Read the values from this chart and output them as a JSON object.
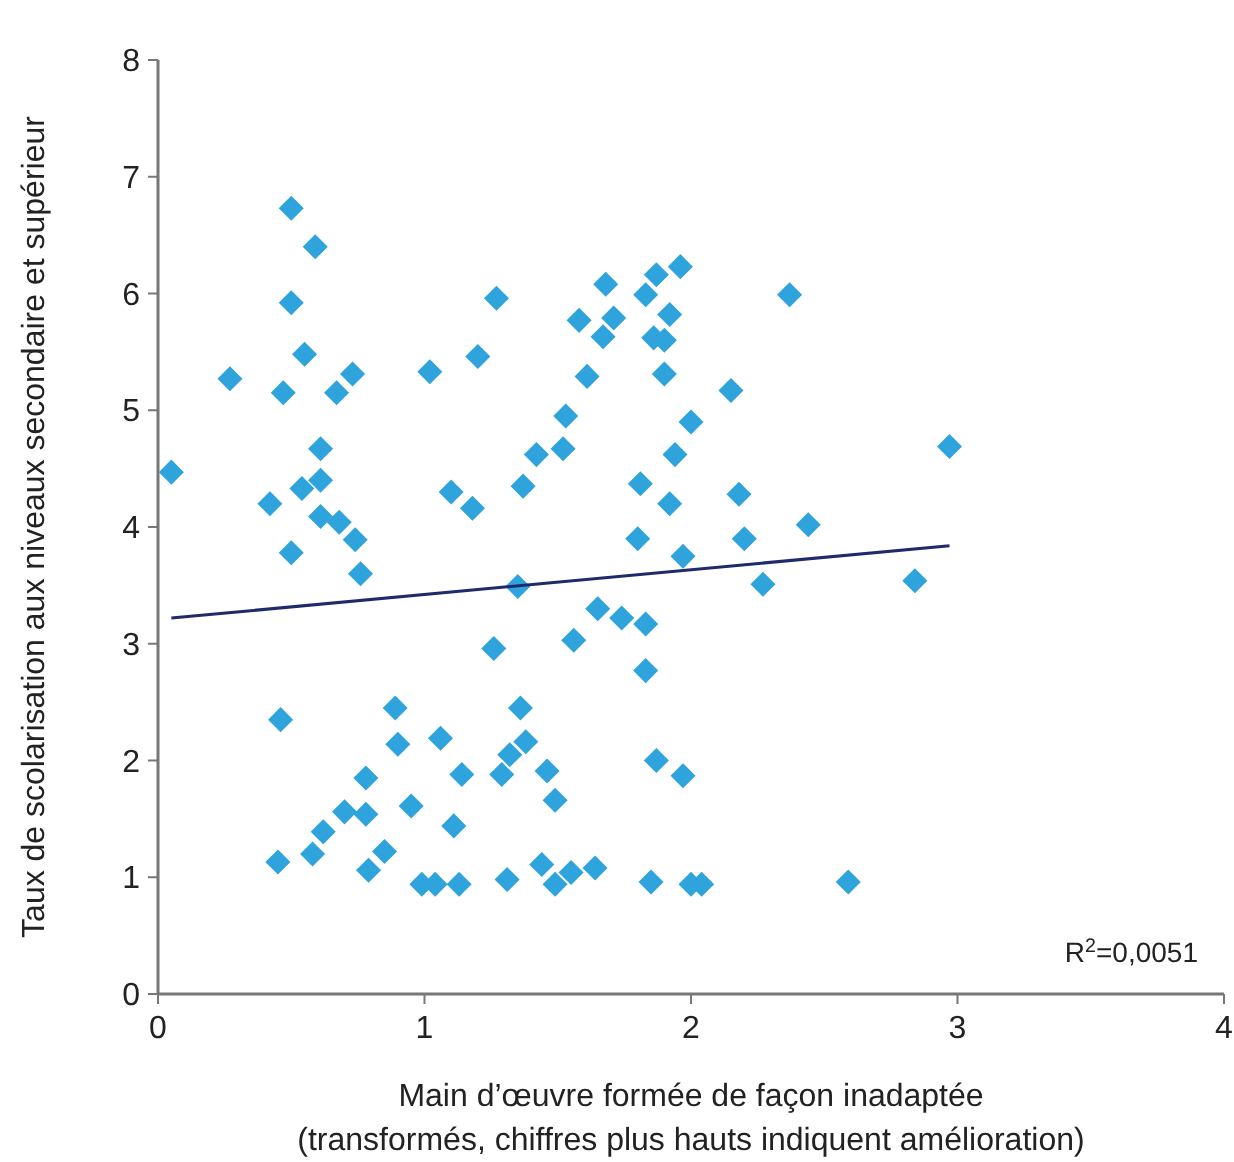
{
  "chart_data": {
    "type": "scatter",
    "xlabel": "Main d’œuvre formée de façon inadaptée\n(transformés, chiffres plus hauts indiquent amélioration)",
    "ylabel": "Taux de scolarisation aux niveaux secondaire et supérieur",
    "xlim": [
      0,
      4
    ],
    "ylim": [
      0,
      8
    ],
    "xticks": [
      0,
      1,
      2,
      3,
      4
    ],
    "yticks": [
      0,
      1,
      2,
      3,
      4,
      5,
      6,
      7,
      8
    ],
    "grid": false,
    "marker": "diamond",
    "annotations": [
      "R$^{2}$=0,0051"
    ],
    "series": [
      {
        "color": "#2ea3dc",
        "x": [
          0.05,
          0.27,
          0.5,
          0.59,
          0.5,
          0.55,
          0.47,
          0.67,
          0.73,
          1.02,
          1.2,
          1.27,
          0.42,
          0.54,
          0.61,
          0.61,
          0.61,
          0.68,
          0.74,
          0.5,
          0.76,
          1.1,
          1.18,
          1.68,
          1.87,
          1.96,
          1.83,
          1.58,
          1.71,
          1.67,
          1.92,
          1.86,
          1.9,
          1.9,
          1.61,
          2.37,
          2.15,
          1.53,
          2.0,
          1.42,
          1.52,
          1.94,
          2.97,
          1.37,
          1.81,
          2.18,
          1.92,
          1.8,
          2.2,
          2.44,
          1.97,
          1.35,
          2.27,
          2.84,
          1.65,
          1.74,
          1.83,
          1.26,
          1.56,
          1.83,
          1.36,
          1.38,
          1.32,
          1.29,
          1.46,
          1.49,
          1.87,
          1.97,
          1.31,
          1.44,
          1.49,
          1.55,
          1.64,
          1.85,
          2.0,
          2.04,
          2.59,
          0.46,
          0.89,
          0.9,
          1.06,
          1.14,
          0.78,
          0.7,
          0.78,
          0.62,
          0.95,
          1.11,
          0.45,
          0.58,
          0.85,
          0.79,
          0.99,
          1.04,
          1.13
        ],
        "values": [
          4.47,
          5.27,
          6.73,
          6.4,
          5.92,
          5.48,
          5.15,
          5.15,
          5.31,
          5.33,
          5.46,
          5.96,
          4.2,
          4.33,
          4.67,
          4.4,
          4.09,
          4.04,
          3.89,
          3.78,
          3.6,
          4.3,
          4.16,
          6.08,
          6.16,
          6.23,
          5.99,
          5.77,
          5.79,
          5.63,
          5.82,
          5.62,
          5.6,
          5.31,
          5.29,
          5.99,
          5.17,
          4.95,
          4.9,
          4.62,
          4.67,
          4.62,
          4.69,
          4.35,
          4.37,
          4.28,
          4.2,
          3.9,
          3.9,
          4.02,
          3.75,
          3.49,
          3.51,
          3.54,
          3.3,
          3.22,
          3.17,
          2.96,
          3.03,
          2.77,
          2.45,
          2.16,
          2.05,
          1.88,
          1.91,
          1.66,
          2.0,
          1.87,
          0.98,
          1.11,
          0.94,
          1.04,
          1.08,
          0.96,
          0.94,
          0.94,
          0.96,
          2.35,
          2.45,
          2.14,
          2.19,
          1.88,
          1.85,
          1.56,
          1.54,
          1.39,
          1.61,
          1.44,
          1.13,
          1.2,
          1.22,
          1.06,
          0.94,
          0.94,
          0.94
        ]
      },
      {
        "type": "line",
        "color": "#1f2a6b",
        "marker": "none",
        "x": [
          0.05,
          2.97
        ],
        "values": [
          3.22,
          3.84
        ]
      }
    ]
  }
}
